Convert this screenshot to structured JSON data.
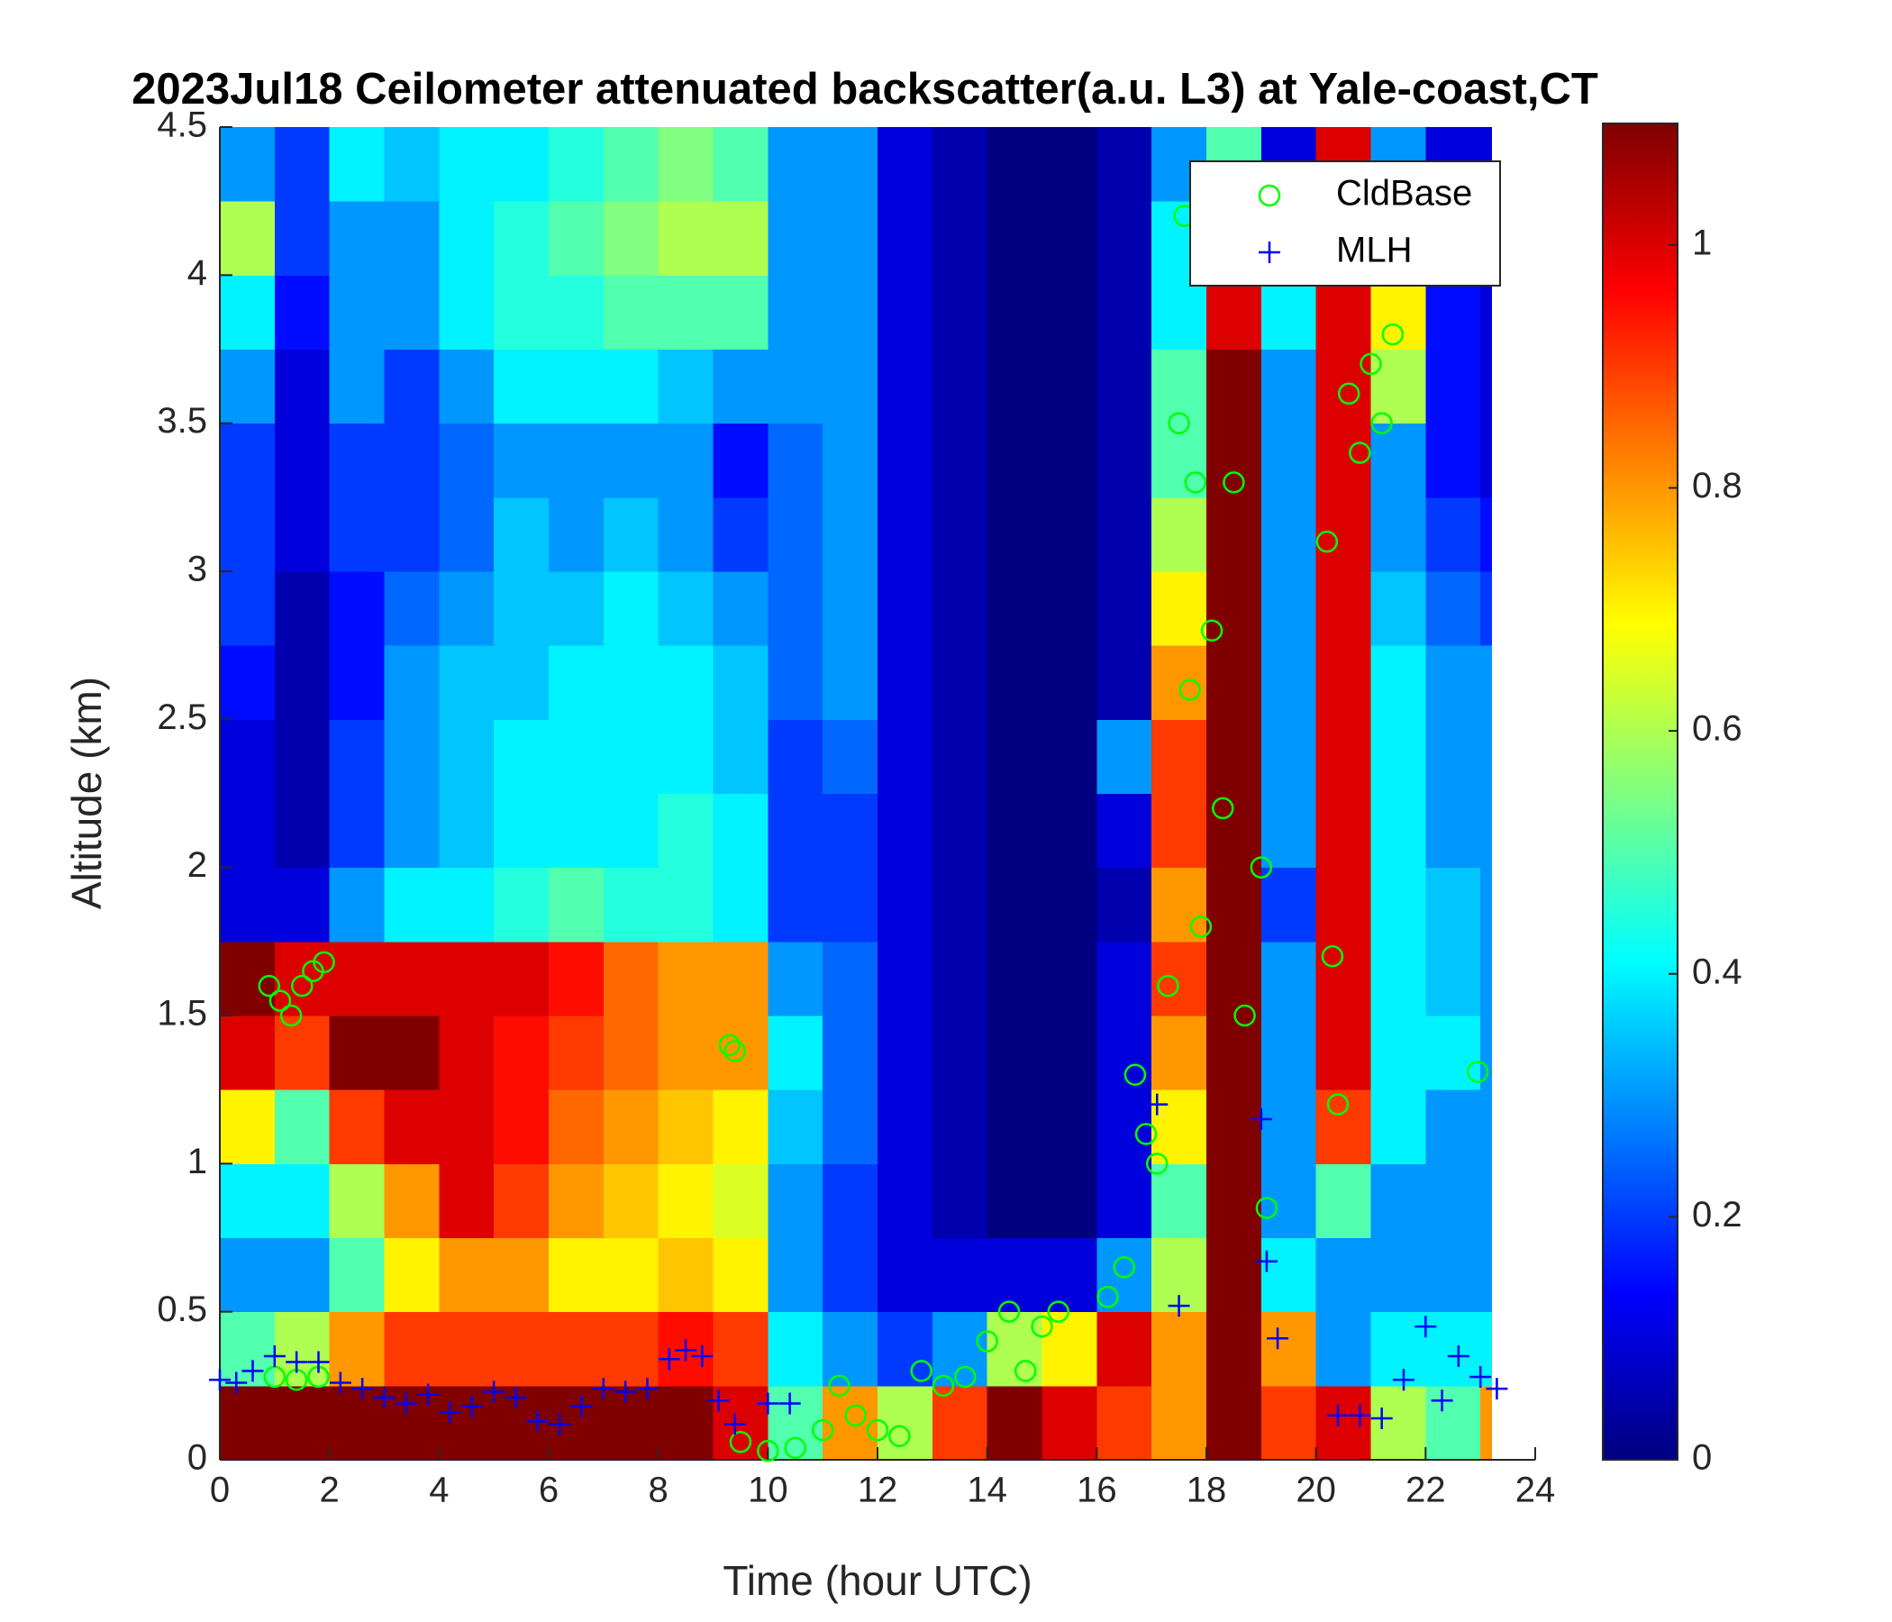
{
  "chart_data": {
    "type": "heatmap",
    "title": "2023Jul18 Ceilometer attenuated backscatter(a.u. L3) at Yale-coast,CT",
    "xlabel": "Time (hour UTC)",
    "ylabel": "Altitude (km)",
    "colormap": "jet",
    "xlim": [
      0,
      24
    ],
    "ylim": [
      0,
      4.5
    ],
    "clim": [
      0,
      1.1
    ],
    "xticks": [
      0,
      2,
      4,
      6,
      8,
      10,
      12,
      14,
      16,
      18,
      20,
      22,
      24
    ],
    "yticks": [
      0,
      0.5,
      1,
      1.5,
      2,
      2.5,
      3,
      3.5,
      4,
      4.5
    ],
    "cticks": [
      0,
      0.2,
      0.4,
      0.6,
      0.8,
      1
    ],
    "legend": "upper right",
    "xbins": [
      0,
      1,
      2,
      3,
      4,
      5,
      6,
      7,
      8,
      9,
      10,
      11,
      12,
      13,
      14,
      15,
      16,
      17,
      18,
      19,
      20,
      21,
      22,
      23,
      23.2
    ],
    "ybins": [
      0,
      0.25,
      0.5,
      0.75,
      1,
      1.25,
      1.5,
      1.75,
      2,
      2.25,
      2.5,
      2.75,
      3,
      3.25,
      3.5,
      3.75,
      4,
      4.25,
      4.5
    ],
    "z": [
      [
        1.1,
        0.5,
        0.3,
        0.4,
        0.7,
        1.0,
        1.1,
        0.1,
        0.1,
        0.1,
        0.15,
        0.2,
        0.2,
        0.2,
        0.3,
        0.4,
        0.6,
        0.3
      ],
      [
        1.1,
        0.6,
        0.3,
        0.4,
        0.5,
        0.9,
        1.0,
        0.1,
        0.05,
        0.05,
        0.05,
        0.05,
        0.1,
        0.1,
        0.1,
        0.15,
        0.2,
        0.2
      ],
      [
        1.1,
        0.8,
        0.5,
        0.6,
        0.9,
        1.1,
        1.0,
        0.3,
        0.2,
        0.2,
        0.15,
        0.15,
        0.2,
        0.2,
        0.3,
        0.3,
        0.3,
        0.4
      ],
      [
        1.1,
        0.9,
        0.7,
        0.8,
        1.0,
        1.1,
        1.0,
        0.4,
        0.3,
        0.3,
        0.3,
        0.25,
        0.2,
        0.2,
        0.2,
        0.3,
        0.3,
        0.35
      ],
      [
        1.1,
        0.9,
        0.8,
        1.0,
        1.0,
        1.0,
        1.0,
        0.4,
        0.35,
        0.35,
        0.35,
        0.3,
        0.25,
        0.25,
        0.3,
        0.4,
        0.4,
        0.4
      ],
      [
        1.1,
        0.9,
        0.8,
        0.9,
        0.95,
        0.95,
        1.0,
        0.45,
        0.4,
        0.4,
        0.35,
        0.35,
        0.35,
        0.3,
        0.4,
        0.45,
        0.45,
        0.4
      ],
      [
        1.1,
        0.9,
        0.7,
        0.8,
        0.85,
        0.9,
        0.95,
        0.5,
        0.4,
        0.4,
        0.4,
        0.35,
        0.3,
        0.3,
        0.4,
        0.45,
        0.5,
        0.45
      ],
      [
        1.1,
        0.9,
        0.7,
        0.75,
        0.8,
        0.85,
        0.85,
        0.45,
        0.4,
        0.4,
        0.4,
        0.4,
        0.35,
        0.3,
        0.4,
        0.5,
        0.55,
        0.5
      ],
      [
        1.1,
        0.95,
        0.75,
        0.7,
        0.75,
        0.8,
        0.8,
        0.45,
        0.45,
        0.4,
        0.4,
        0.35,
        0.3,
        0.3,
        0.35,
        0.5,
        0.6,
        0.55
      ],
      [
        1.0,
        0.9,
        0.7,
        0.65,
        0.7,
        0.8,
        0.8,
        0.4,
        0.4,
        0.35,
        0.35,
        0.3,
        0.2,
        0.15,
        0.3,
        0.5,
        0.6,
        0.5
      ],
      [
        0.5,
        0.4,
        0.3,
        0.3,
        0.35,
        0.4,
        0.3,
        0.2,
        0.2,
        0.2,
        0.25,
        0.25,
        0.25,
        0.25,
        0.3,
        0.3,
        0.3,
        0.3
      ],
      [
        0.8,
        0.3,
        0.2,
        0.2,
        0.25,
        0.25,
        0.25,
        0.2,
        0.2,
        0.25,
        0.3,
        0.3,
        0.3,
        0.3,
        0.3,
        0.3,
        0.3,
        0.3
      ],
      [
        0.6,
        0.2,
        0.1,
        0.1,
        0.1,
        0.1,
        0.1,
        0.1,
        0.1,
        0.1,
        0.1,
        0.1,
        0.1,
        0.1,
        0.1,
        0.1,
        0.1,
        0.1
      ],
      [
        0.9,
        0.3,
        0.1,
        0.05,
        0.05,
        0.05,
        0.05,
        0.05,
        0.05,
        0.05,
        0.05,
        0.05,
        0.05,
        0.05,
        0.05,
        0.05,
        0.05,
        0.05
      ],
      [
        1.1,
        0.6,
        0.1,
        0,
        0,
        0,
        0,
        0,
        0,
        0,
        0,
        0,
        0,
        0,
        0,
        0,
        0,
        0
      ],
      [
        1.0,
        0.7,
        0.1,
        0,
        0,
        0,
        0,
        0,
        0,
        0,
        0,
        0,
        0,
        0,
        0,
        0,
        0,
        0
      ],
      [
        0.9,
        1.0,
        0.3,
        0.1,
        0.1,
        0.1,
        0.1,
        0.05,
        0.1,
        0.3,
        0.05,
        0.05,
        0.05,
        0.05,
        0.05,
        0.05,
        0.05,
        0.05
      ],
      [
        0.8,
        0.8,
        0.6,
        0.5,
        0.7,
        0.8,
        0.9,
        0.8,
        0.9,
        0.9,
        0.8,
        0.7,
        0.6,
        0.5,
        0.5,
        0.4,
        0.4,
        0.3
      ],
      [
        1.1,
        1.1,
        1.1,
        1.1,
        1.1,
        1.1,
        1.1,
        1.1,
        1.1,
        1.1,
        1.1,
        1.1,
        1.1,
        1.1,
        1.1,
        1.0,
        0.9,
        0.5
      ],
      [
        0.9,
        0.8,
        0.4,
        0.3,
        0.3,
        0.3,
        0.3,
        0.2,
        0.3,
        0.3,
        0.3,
        0.3,
        0.3,
        0.3,
        0.3,
        0.4,
        0.3,
        0.1
      ],
      [
        1.0,
        0.3,
        0.3,
        0.5,
        0.9,
        1.0,
        1.0,
        1.0,
        1.0,
        1.0,
        1.0,
        1.0,
        1.0,
        1.0,
        1.0,
        1.0,
        1.0,
        1.0
      ],
      [
        0.6,
        0.4,
        0.3,
        0.3,
        0.4,
        0.4,
        0.4,
        0.4,
        0.4,
        0.4,
        0.4,
        0.35,
        0.3,
        0.3,
        0.6,
        0.7,
        0.4,
        0.3
      ],
      [
        0.5,
        0.4,
        0.3,
        0.3,
        0.3,
        0.4,
        0.35,
        0.35,
        0.3,
        0.3,
        0.3,
        0.25,
        0.2,
        0.15,
        0.15,
        0.15,
        0.15,
        0.1
      ],
      [
        0.8,
        0.4,
        0.3,
        0.3,
        0.3,
        0.3,
        0.3,
        0.3,
        0.3,
        0.3,
        0.3,
        0.2,
        0.15,
        0.1,
        0.1,
        0.1,
        0.1,
        0.1
      ]
    ],
    "series": [
      {
        "name": "CldBase",
        "color": "#00ff00",
        "marker": "circle",
        "x": [
          0.9,
          1.1,
          1.3,
          1.5,
          1.7,
          1.9,
          1.0,
          1.4,
          1.8,
          9.3,
          9.4,
          9.5,
          10,
          10.5,
          11,
          11.3,
          11.6,
          12,
          12.4,
          12.8,
          13.2,
          13.6,
          14,
          14.4,
          14.7,
          15,
          15.3,
          16.2,
          16.5,
          16.7,
          16.9,
          17.1,
          17.3,
          17.5,
          17.6,
          17.7,
          17.8,
          17.9,
          18.1,
          18.3,
          18.5,
          18.7,
          19,
          19.1,
          20.2,
          20.3,
          20.4,
          20.6,
          20.8,
          21,
          21.2,
          21.4,
          22.95
        ],
        "y": [
          1.6,
          1.55,
          1.5,
          1.6,
          1.65,
          1.68,
          0.28,
          0.27,
          0.28,
          1.4,
          1.38,
          0.06,
          0.03,
          0.04,
          0.1,
          0.25,
          0.15,
          0.1,
          0.08,
          0.3,
          0.25,
          0.28,
          0.4,
          0.5,
          0.3,
          0.45,
          0.5,
          0.55,
          0.65,
          1.3,
          1.1,
          1.0,
          1.6,
          3.5,
          4.2,
          2.6,
          3.3,
          1.8,
          2.8,
          2.2,
          3.3,
          1.5,
          2.0,
          0.85,
          3.1,
          1.7,
          1.2,
          3.6,
          3.4,
          3.7,
          3.5,
          3.8,
          1.31
        ]
      },
      {
        "name": "MLH",
        "color": "#0000ff",
        "marker": "plus",
        "x": [
          0,
          0.3,
          0.6,
          1,
          1.4,
          1.8,
          2.2,
          2.6,
          3,
          3.4,
          3.8,
          4.2,
          4.6,
          5,
          5.4,
          5.8,
          6.2,
          6.6,
          7,
          7.4,
          7.8,
          8.2,
          8.5,
          8.8,
          9.1,
          9.4,
          10,
          10.4,
          17.1,
          17.5,
          19.0,
          19.1,
          19.3,
          20.4,
          20.8,
          21.2,
          21.6,
          22,
          22.3,
          22.6,
          23,
          23.3
        ],
        "y": [
          0.27,
          0.26,
          0.3,
          0.35,
          0.33,
          0.33,
          0.26,
          0.24,
          0.21,
          0.19,
          0.22,
          0.16,
          0.18,
          0.23,
          0.21,
          0.13,
          0.12,
          0.18,
          0.24,
          0.23,
          0.24,
          0.34,
          0.37,
          0.35,
          0.2,
          0.12,
          0.19,
          0.19,
          1.2,
          0.52,
          1.15,
          0.67,
          0.41,
          0.15,
          0.15,
          0.14,
          0.27,
          0.45,
          0.2,
          0.35,
          0.28,
          0.24
        ]
      }
    ]
  }
}
